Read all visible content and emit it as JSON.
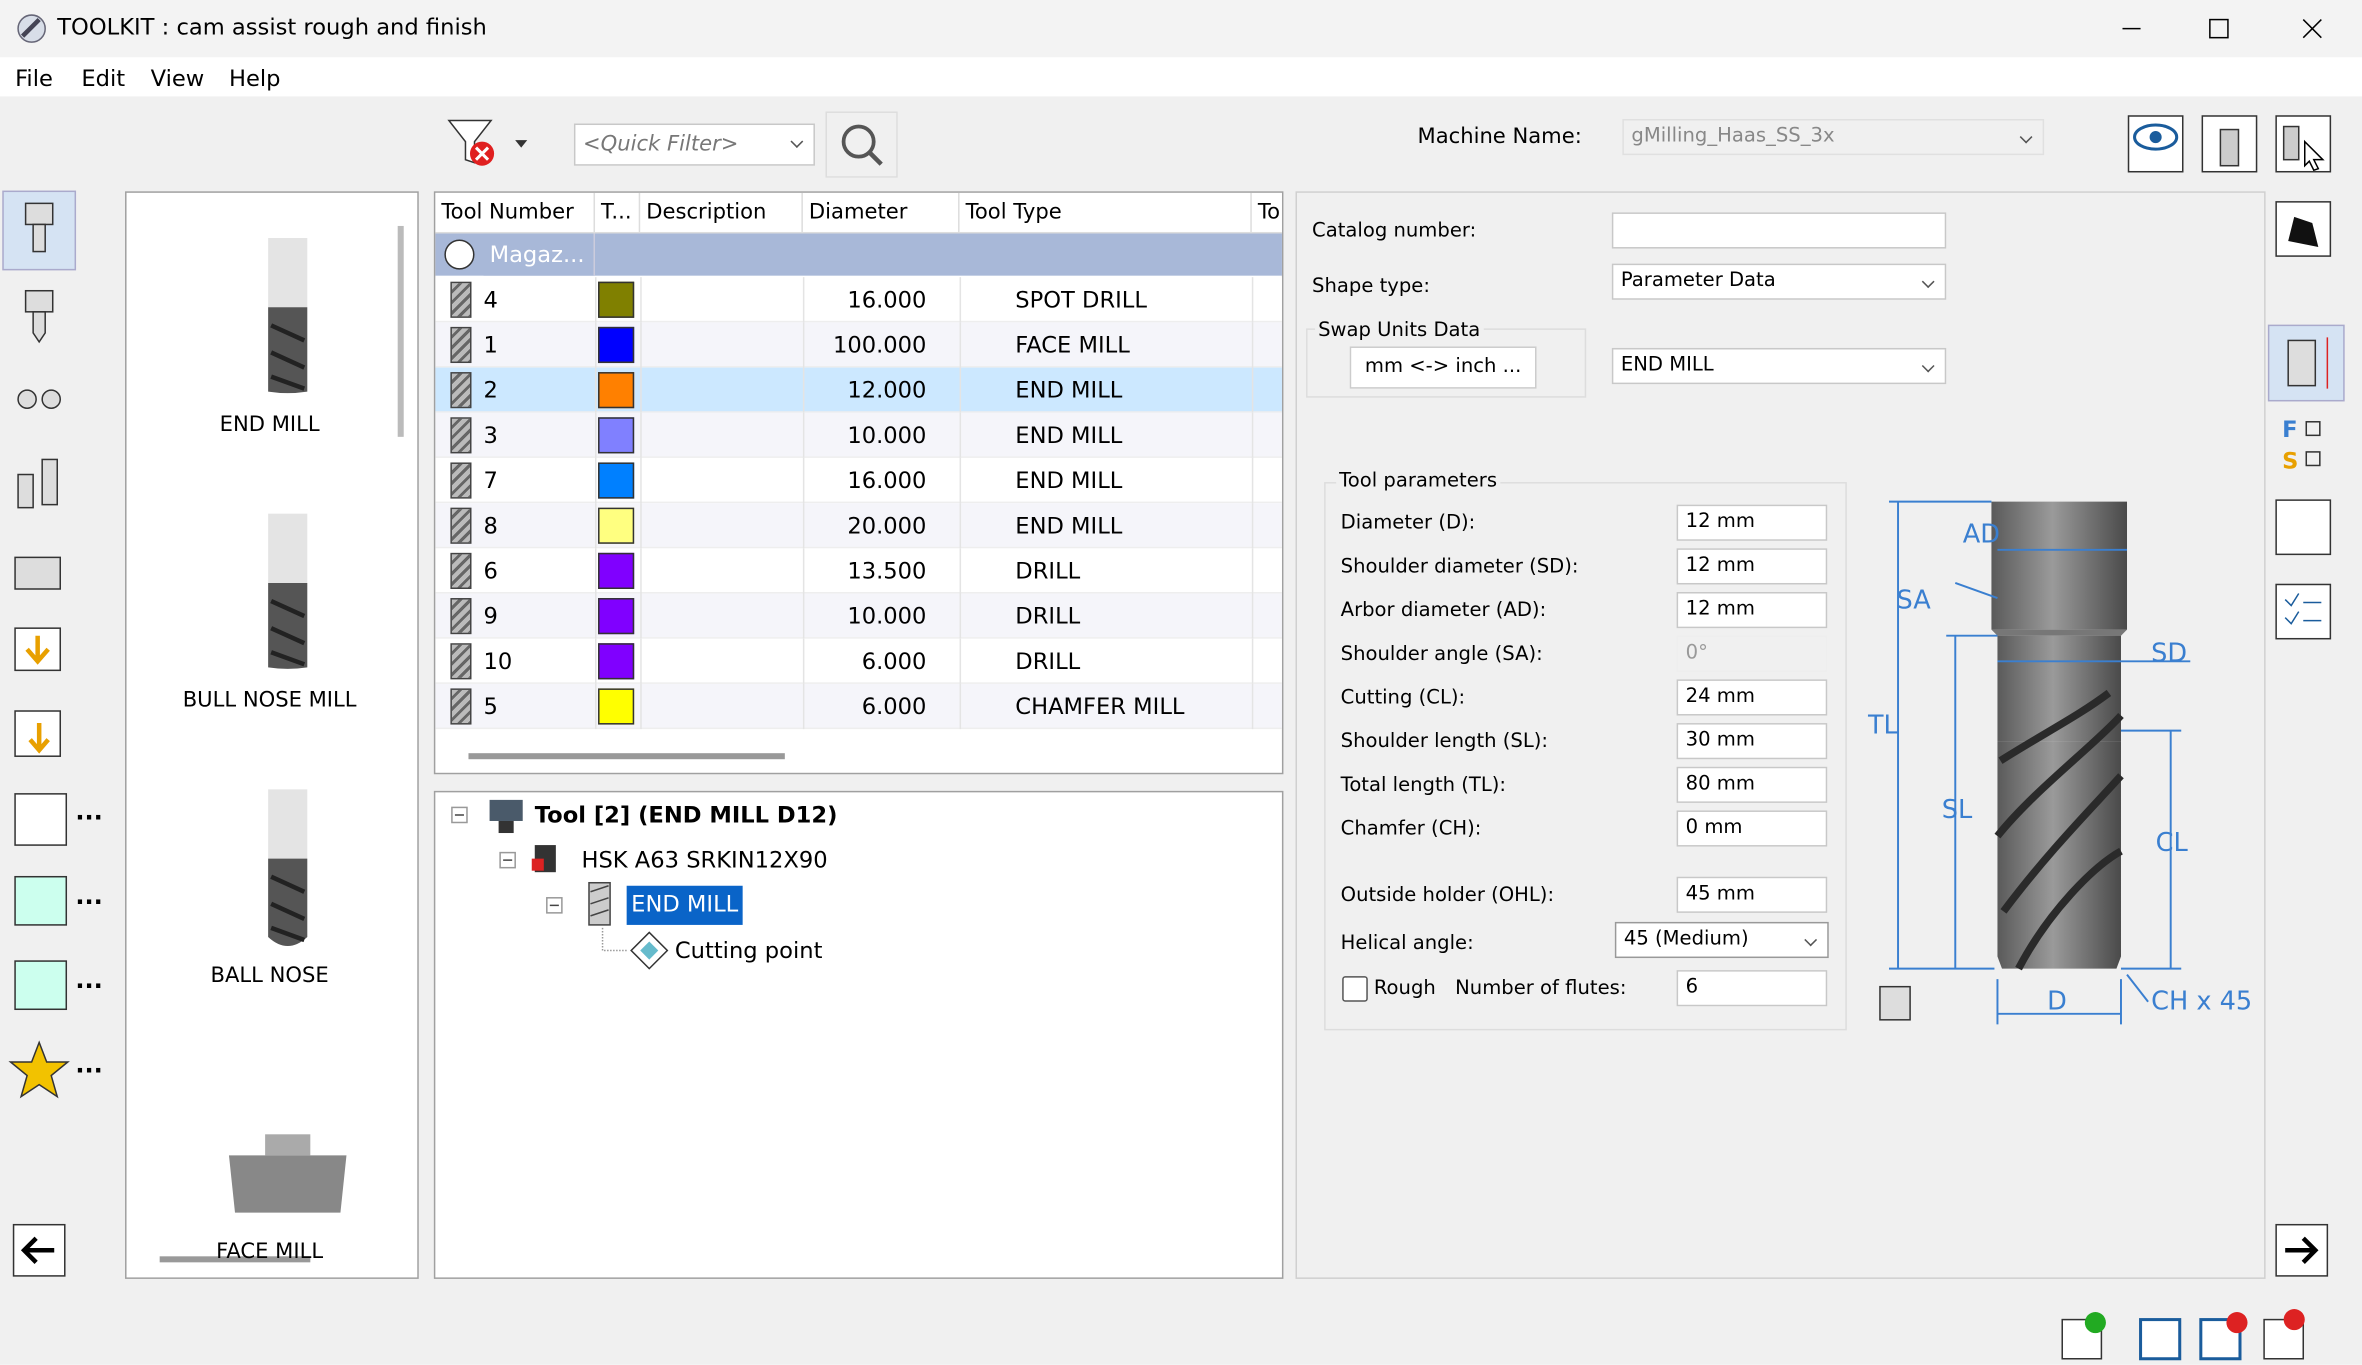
{
  "window": {
    "title": "TOOLKIT : cam assist rough and finish"
  },
  "menu": [
    "File",
    "Edit",
    "View",
    "Help"
  ],
  "toolbar": {
    "quick_filter": "<Quick Filter>",
    "machine_name_label": "Machine Name:",
    "machine_name": "gMilling_Haas_SS_3x"
  },
  "left_toolbar": {
    "more": "..."
  },
  "library": [
    "END MILL",
    "BULL NOSE MILL",
    "BALL NOSE",
    "FACE MILL"
  ],
  "table": {
    "columns": [
      "Tool Number",
      "T...",
      "Description",
      "Diameter",
      "Tool Type",
      "To"
    ],
    "group": "Magaz...",
    "rows": [
      {
        "number": "4",
        "color": "#808000",
        "diameter": "16.000",
        "type": "SPOT DRILL"
      },
      {
        "number": "1",
        "color": "#0000ff",
        "diameter": "100.000",
        "type": "FACE MILL"
      },
      {
        "number": "2",
        "color": "#ff8000",
        "diameter": "12.000",
        "type": "END MILL"
      },
      {
        "number": "3",
        "color": "#8080ff",
        "diameter": "10.000",
        "type": "END MILL"
      },
      {
        "number": "7",
        "color": "#0080ff",
        "diameter": "16.000",
        "type": "END MILL"
      },
      {
        "number": "8",
        "color": "#ffff80",
        "diameter": "20.000",
        "type": "END MILL"
      },
      {
        "number": "6",
        "color": "#8000ff",
        "diameter": "13.500",
        "type": "DRILL"
      },
      {
        "number": "9",
        "color": "#8000ff",
        "diameter": "10.000",
        "type": "DRILL"
      },
      {
        "number": "10",
        "color": "#8000ff",
        "diameter": "6.000",
        "type": "DRILL"
      },
      {
        "number": "5",
        "color": "#ffff00",
        "diameter": "6.000",
        "type": "CHAMFER MILL"
      }
    ],
    "selected_row": 2
  },
  "tree": {
    "root": "Tool [2] (END MILL D12)",
    "holder": "HSK A63 SRKIN12X90",
    "tool": "END MILL",
    "point": "Cutting point"
  },
  "properties": {
    "catalog_label": "Catalog number:",
    "shape_label": "Shape type:",
    "shape": "Parameter Data",
    "swap_label": "Swap Units Data",
    "swap_button": "mm <-> inch ...",
    "tool_kind": "END MILL",
    "group_title": "Tool parameters",
    "params": [
      {
        "label": "Diameter (D):",
        "value": "12 mm"
      },
      {
        "label": "Shoulder diameter (SD):",
        "value": "12 mm"
      },
      {
        "label": "Arbor diameter (AD):",
        "value": "12 mm"
      },
      {
        "label": "Shoulder angle (SA):",
        "value": "0°",
        "disabled": true
      },
      {
        "label": "Cutting (CL):",
        "value": "24 mm"
      },
      {
        "label": "Shoulder length (SL):",
        "value": "30 mm"
      },
      {
        "label": "Total length (TL):",
        "value": "80 mm"
      },
      {
        "label": "Chamfer (CH):",
        "value": "0 mm"
      },
      {
        "label": "Outside holder (OHL):",
        "value": "45 mm"
      }
    ],
    "helical_label": "Helical angle:",
    "helical": "45 (Medium)",
    "rough": "Rough",
    "flutes_label": "Number of flutes:",
    "flutes": "6"
  },
  "diagram": {
    "AD": "AD",
    "SA": "SA",
    "SD": "SD",
    "TL": "TL",
    "SL": "SL",
    "CL": "CL",
    "D": "D",
    "CH": "CH x 45"
  }
}
